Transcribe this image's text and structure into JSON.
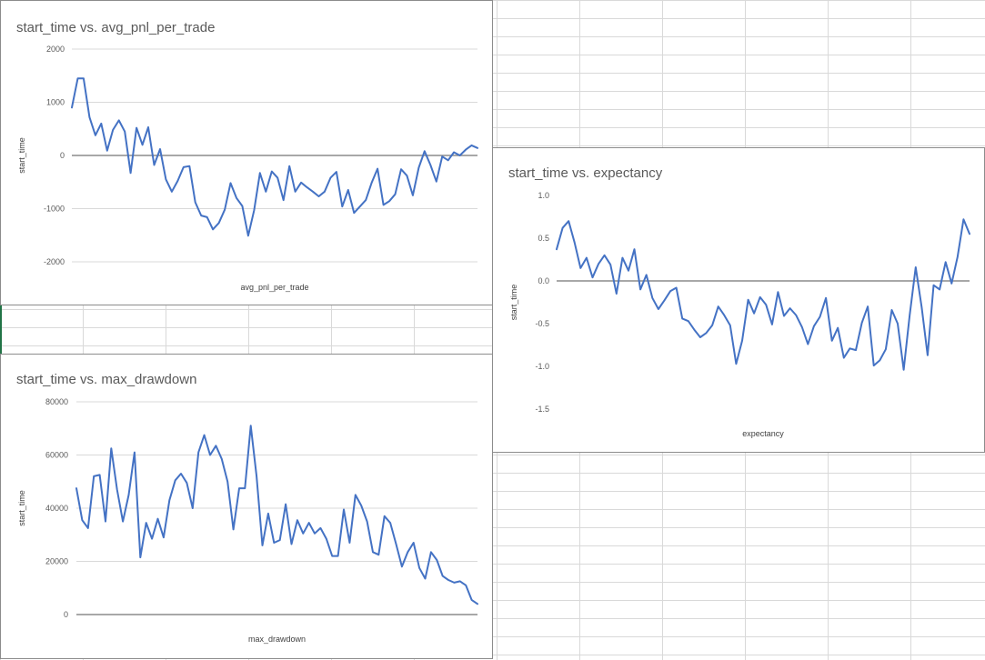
{
  "spreadsheet": {
    "gridline_color": "#d9d9d9"
  },
  "chart_data": [
    {
      "id": "pnl",
      "type": "line",
      "title": "start_time vs. avg_pnl_per_trade",
      "xlabel": "avg_pnl_per_trade",
      "ylabel": "start_time",
      "ylim": [
        -2000,
        2000
      ],
      "yticks": [
        "2000",
        "1000",
        "0",
        "-1000",
        "-2000"
      ],
      "ytick_values": [
        2000,
        1000,
        0,
        -1000,
        -2000
      ],
      "grid": true,
      "legend": "none",
      "series": [
        {
          "color": "#4472c4",
          "values": [
            900,
            1450,
            1450,
            720,
            380,
            600,
            90,
            480,
            660,
            450,
            -330,
            520,
            200,
            530,
            -180,
            120,
            -450,
            -680,
            -480,
            -220,
            -200,
            -880,
            -1130,
            -1160,
            -1390,
            -1270,
            -1020,
            -520,
            -800,
            -950,
            -1510,
            -1030,
            -330,
            -680,
            -300,
            -420,
            -840,
            -200,
            -680,
            -510,
            -600,
            -680,
            -770,
            -680,
            -420,
            -310,
            -960,
            -650,
            -1080,
            -960,
            -840,
            -510,
            -250,
            -930,
            -860,
            -730,
            -260,
            -380,
            -750,
            -230,
            80,
            -180,
            -490,
            -20,
            -90,
            60,
            0,
            110,
            190,
            140
          ]
        }
      ]
    },
    {
      "id": "expectancy",
      "type": "line",
      "title": "start_time vs. expectancy",
      "xlabel": "expectancy",
      "ylabel": "start_time",
      "ylim": [
        -1.5,
        1.0
      ],
      "yticks": [
        "1.0",
        "0.5",
        "0.0",
        "-0.5",
        "-1.0",
        "-1.5"
      ],
      "ytick_values": [
        1.0,
        0.5,
        0.0,
        -0.5,
        -1.0,
        -1.5
      ],
      "grid": false,
      "legend": "none",
      "series": [
        {
          "color": "#4472c4",
          "values": [
            0.37,
            0.62,
            0.7,
            0.45,
            0.15,
            0.27,
            0.04,
            0.2,
            0.3,
            0.19,
            -0.15,
            0.27,
            0.12,
            0.37,
            -0.1,
            0.07,
            -0.2,
            -0.33,
            -0.23,
            -0.12,
            -0.08,
            -0.44,
            -0.47,
            -0.57,
            -0.66,
            -0.61,
            -0.52,
            -0.3,
            -0.4,
            -0.52,
            -0.97,
            -0.7,
            -0.22,
            -0.38,
            -0.19,
            -0.28,
            -0.51,
            -0.13,
            -0.41,
            -0.32,
            -0.4,
            -0.54,
            -0.74,
            -0.53,
            -0.42,
            -0.2,
            -0.7,
            -0.55,
            -0.9,
            -0.79,
            -0.81,
            -0.49,
            -0.3,
            -0.99,
            -0.93,
            -0.8,
            -0.34,
            -0.5,
            -1.04,
            -0.4,
            0.16,
            -0.31,
            -0.87,
            -0.05,
            -0.1,
            0.22,
            -0.03,
            0.28,
            0.72,
            0.55
          ]
        }
      ]
    },
    {
      "id": "drawdown",
      "type": "line",
      "title": "start_time vs. max_drawdown",
      "xlabel": "max_drawdown",
      "ylabel": "start_time",
      "ylim": [
        0,
        80000
      ],
      "yticks": [
        "80000",
        "60000",
        "40000",
        "20000",
        "0"
      ],
      "ytick_values": [
        80000,
        60000,
        40000,
        20000,
        0
      ],
      "grid": true,
      "legend": "none",
      "series": [
        {
          "color": "#4472c4",
          "values": [
            47500,
            35500,
            32500,
            52000,
            52500,
            35000,
            62500,
            47000,
            35000,
            45000,
            61000,
            21500,
            34500,
            28500,
            36000,
            29000,
            43000,
            50500,
            53000,
            49500,
            40000,
            61000,
            67500,
            60000,
            63500,
            58500,
            50000,
            32000,
            47500,
            47500,
            71000,
            52000,
            26000,
            38000,
            27000,
            28000,
            41500,
            26500,
            35500,
            30500,
            34500,
            30500,
            32500,
            28500,
            22000,
            22000,
            39500,
            27000,
            45000,
            41000,
            35000,
            23500,
            22500,
            37000,
            34500,
            26500,
            18000,
            23500,
            27000,
            17500,
            13500,
            23500,
            20500,
            14500,
            13000,
            12000,
            12500,
            11000,
            5500,
            4000
          ]
        }
      ]
    }
  ]
}
